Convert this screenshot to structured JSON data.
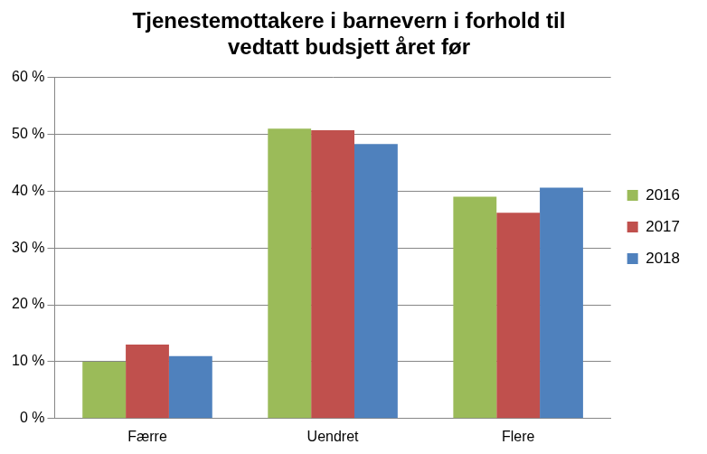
{
  "chart_data": {
    "type": "bar",
    "title": "Tjenestemottakere i barnevern i forhold til vedtatt budsjett året før",
    "categories": [
      "Færre",
      "Uendret",
      "Flere"
    ],
    "series": [
      {
        "name": "2016",
        "color": "#9bbb59",
        "values": [
          10,
          51,
          39
        ]
      },
      {
        "name": "2017",
        "color": "#c0504d",
        "values": [
          13,
          50.7,
          36.2
        ]
      },
      {
        "name": "2018",
        "color": "#4f81bd",
        "values": [
          11,
          48.3,
          40.6
        ]
      }
    ],
    "ylim": [
      0,
      60
    ],
    "yticks": [
      {
        "value": 0,
        "label": "0 %"
      },
      {
        "value": 10,
        "label": "10 %"
      },
      {
        "value": 20,
        "label": "20 %"
      },
      {
        "value": 30,
        "label": "30 %"
      },
      {
        "value": 40,
        "label": "40 %"
      },
      {
        "value": 50,
        "label": "50 %"
      },
      {
        "value": 60,
        "label": "60 %"
      }
    ],
    "grid": true,
    "legend": "right"
  }
}
